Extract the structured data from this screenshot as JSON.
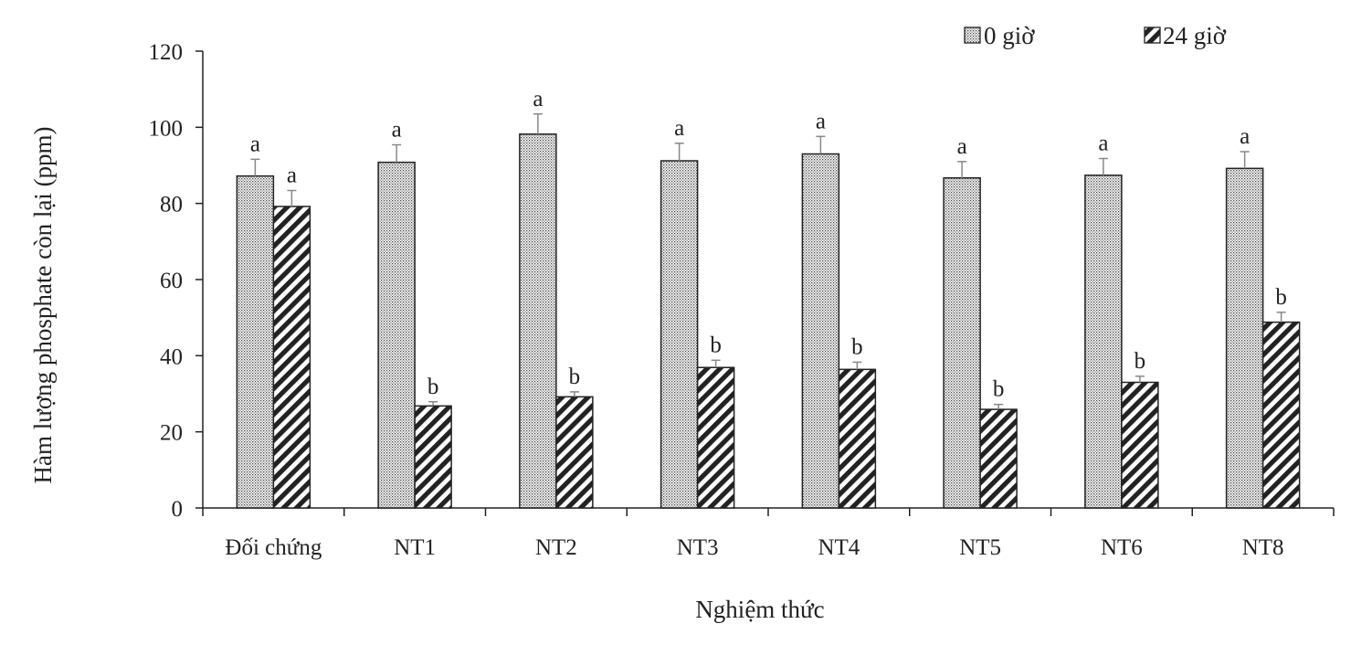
{
  "chart_data": {
    "type": "bar",
    "categories": [
      "Đối chứng",
      "NT1",
      "NT2",
      "NT3",
      "NT4",
      "NT5",
      "NT6",
      "NT8"
    ],
    "series": [
      {
        "name": "0 giờ",
        "values": [
          87.2,
          90.8,
          98.2,
          91.2,
          93.0,
          86.7,
          87.4,
          89.2
        ],
        "errors": [
          4.4,
          4.6,
          5.3,
          4.6,
          4.6,
          4.3,
          4.4,
          4.4
        ],
        "labels": [
          "a",
          "a",
          "a",
          "a",
          "a",
          "a",
          "a",
          "a"
        ],
        "pattern": "dots"
      },
      {
        "name": "24 giờ",
        "values": [
          79.2,
          26.8,
          29.2,
          36.9,
          36.4,
          25.9,
          33.0,
          48.8
        ],
        "errors": [
          4.2,
          1.1,
          1.3,
          1.9,
          1.9,
          1.3,
          1.6,
          2.6
        ],
        "labels": [
          "a",
          "b",
          "b",
          "b",
          "b",
          "b",
          "b",
          "b"
        ],
        "pattern": "stripes"
      }
    ],
    "xlabel": "Nghiệm thức",
    "ylabel": "Hàm lượng phosphate còn lại (ppm)",
    "ylim": [
      0,
      120
    ],
    "yticks": [
      0,
      20,
      40,
      60,
      80,
      100,
      120
    ],
    "grid": false,
    "legend_position": "top-right"
  }
}
